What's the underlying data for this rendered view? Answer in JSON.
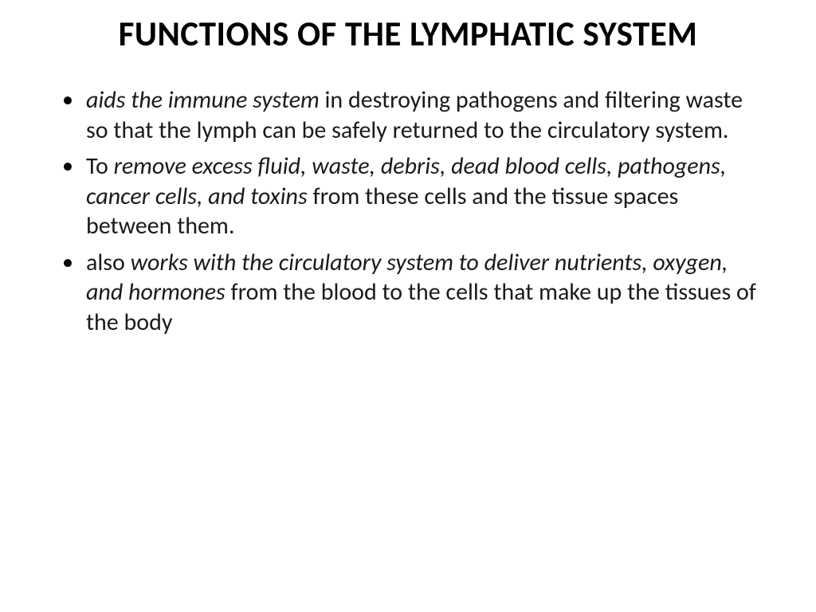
{
  "title": "FUNCTIONS OF THE LYMPHATIC SYSTEM",
  "bullets": [
    {
      "parts": [
        {
          "text": "aids the immune system",
          "italic": true
        },
        {
          "text": " in destroying pathogens and filtering waste so that the lymph can be safely returned to the circulatory system.",
          "italic": false
        }
      ]
    },
    {
      "parts": [
        {
          "text": "To ",
          "italic": false
        },
        {
          "text": "remove excess fluid, waste, debris, dead blood cells, pathogens, cancer cells, and toxins",
          "italic": true
        },
        {
          "text": " from these cells and the tissue spaces between them.",
          "italic": false
        }
      ]
    },
    {
      "parts": [
        {
          "text": " also ",
          "italic": false
        },
        {
          "text": "works with the circulatory system to deliver nutrients, oxygen, and hormones",
          "italic": true
        },
        {
          "text": " from the blood to the cells that make up the tissues of the body",
          "italic": false
        }
      ]
    }
  ],
  "style": {
    "background": "#ffffff",
    "text_color": "#000000",
    "title_fontsize": 43,
    "body_fontsize": 30,
    "font_family": "Calibri"
  }
}
